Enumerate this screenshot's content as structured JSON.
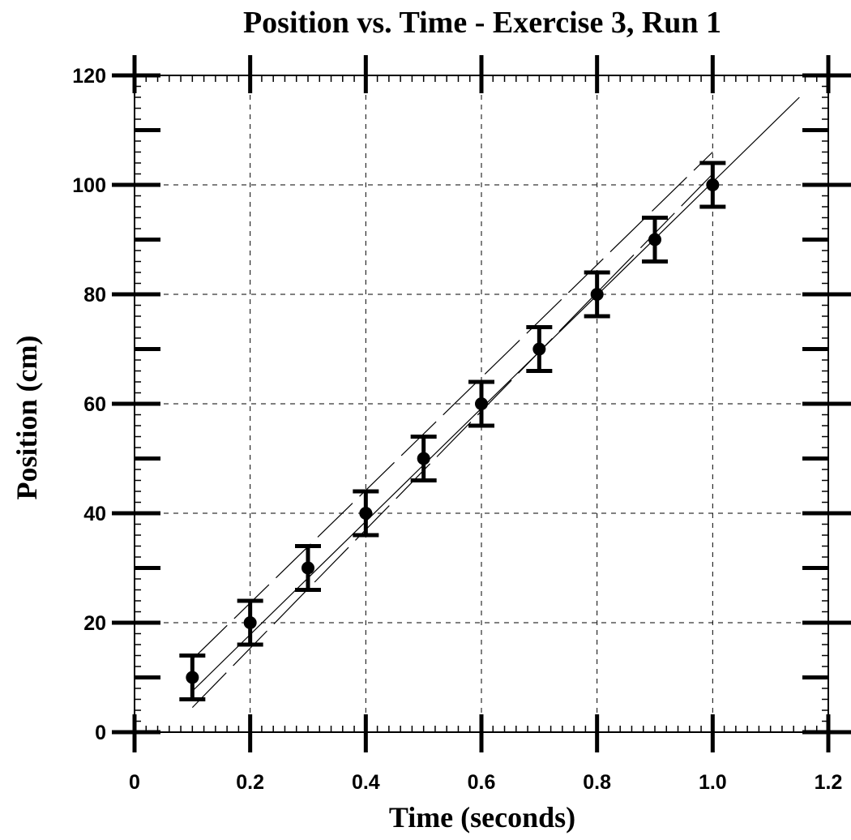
{
  "chart_data": {
    "type": "scatter",
    "title": "Position vs. Time - Exercise 3, Run 1",
    "xlabel": "Time (seconds)",
    "ylabel": "Position (cm)",
    "xlim": [
      0,
      1.2
    ],
    "ylim": [
      0,
      120
    ],
    "x_ticks": [
      0,
      0.2,
      0.4,
      0.6,
      0.8,
      1.0,
      1.2
    ],
    "x_tick_labels": [
      "0",
      "0.2",
      "0.4",
      "0.6",
      "0.8",
      "1.0",
      "1.2"
    ],
    "y_ticks": [
      0,
      20,
      40,
      60,
      80,
      100,
      120
    ],
    "y_tick_labels": [
      "0",
      "20",
      "40",
      "60",
      "80",
      "100",
      "120"
    ],
    "grid": true,
    "series": [
      {
        "x": [
          0.1,
          0.2,
          0.3,
          0.4,
          0.5,
          0.6,
          0.7,
          0.8,
          0.9,
          1.0
        ],
        "y": [
          10,
          20,
          30,
          40,
          50,
          60,
          70,
          80,
          90,
          100
        ],
        "y_error": [
          4,
          4,
          4,
          4,
          4,
          4,
          4,
          4,
          4,
          4
        ]
      }
    ],
    "fit_lines": [
      {
        "style": "solid",
        "x": [
          0.1,
          1.15
        ],
        "y": [
          7.5,
          116
        ]
      },
      {
        "style": "dashed",
        "x": [
          0.1,
          1.0
        ],
        "y": [
          13.3,
          106
        ]
      },
      {
        "style": "dashed",
        "x": [
          0.1,
          1.0
        ],
        "y": [
          4.5,
          102
        ]
      }
    ]
  }
}
